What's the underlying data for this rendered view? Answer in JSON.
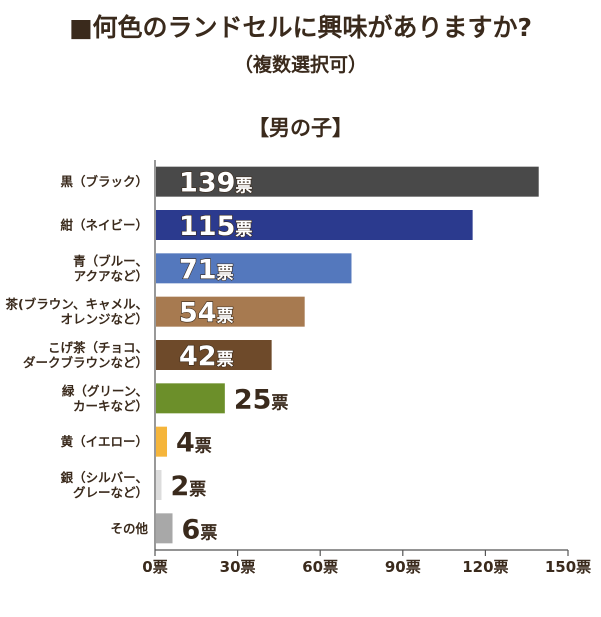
{
  "title": "■何色のランドセルに興味がありますか?",
  "subtitle": "（複数選択可）",
  "group_label": "【男の子】",
  "chart_data": {
    "type": "bar",
    "orientation": "horizontal",
    "title": "■何色のランドセルに興味がありますか?",
    "subtitle": "（複数選択可）",
    "group": "【男の子】",
    "categories": [
      [
        "黒（ブラック）"
      ],
      [
        "紺（ネイビー）"
      ],
      [
        "青（ブルー、",
        "アクアなど）"
      ],
      [
        "茶(ブラウン、キャメル、",
        "オレンジなど）"
      ],
      [
        "こげ茶（チョコ、",
        "ダークブラウンなど）"
      ],
      [
        "緑（グリーン、",
        "カーキなど）"
      ],
      [
        "黄（イエロー）"
      ],
      [
        "銀（シルバー、",
        "グレーなど）"
      ],
      [
        "その他"
      ]
    ],
    "values": [
      139,
      115,
      71,
      54,
      42,
      25,
      4,
      2,
      6
    ],
    "value_unit": "票",
    "colors": [
      "#494949",
      "#2b3a8e",
      "#5478bd",
      "#a77a50",
      "#6e4a2a",
      "#6c8f2a",
      "#f5b53b",
      "#dcdcdc",
      "#a8a8a8"
    ],
    "xlim": [
      0,
      150
    ],
    "xticks": [
      0,
      30,
      60,
      90,
      120,
      150
    ],
    "xtick_labels": [
      "0票",
      "30票",
      "60票",
      "90票",
      "120票",
      "150票"
    ],
    "xlabel": "",
    "ylabel": ""
  }
}
